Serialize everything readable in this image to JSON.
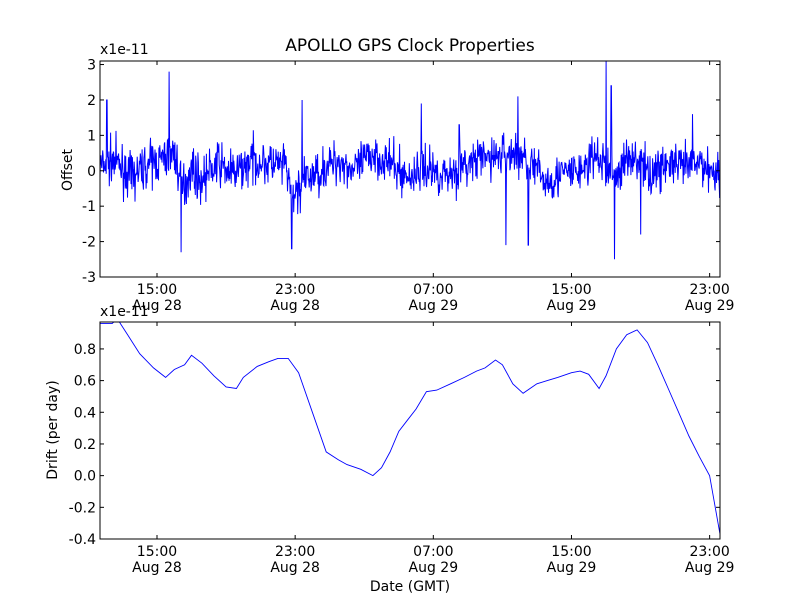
{
  "chart_data": [
    {
      "type": "line",
      "title": "APOLLO GPS Clock Properties",
      "ylabel": "Offset",
      "xlabel": "",
      "scale_label": "x1e-11",
      "ylim": [
        -3,
        3.1
      ],
      "yticks": [
        "-3",
        "-2",
        "-1",
        "0",
        "1",
        "2",
        "3"
      ],
      "yticks_values": [
        -3,
        -2,
        -1,
        0,
        1,
        2,
        3
      ],
      "xlim_hours": [
        11.7,
        47.6
      ],
      "xticks": [
        {
          "time": "15:00",
          "date": "Aug 28",
          "hour": 15
        },
        {
          "time": "23:00",
          "date": "Aug 28",
          "hour": 23
        },
        {
          "time": "07:00",
          "date": "Aug 29",
          "hour": 31
        },
        {
          "time": "15:00",
          "date": "Aug 29",
          "hour": 39
        },
        {
          "time": "23:00",
          "date": "Aug 29",
          "hour": 47
        }
      ],
      "color": "#0000ff",
      "series": [
        {
          "x": [
            11.7,
            12.5,
            13.5,
            14.5,
            15.3,
            16.0,
            16.5,
            17.0,
            17.5,
            18.5,
            19.5,
            20.5,
            21.5,
            22.5,
            22.8,
            23.5,
            24.5,
            25.5,
            26.5,
            27.5,
            28.5,
            29.5,
            30.5,
            31.5,
            32.5,
            33.5,
            34.5,
            35.5,
            36.5,
            37.5,
            38.5,
            39.5,
            40.5,
            41.5,
            42.5,
            43.5,
            44.5,
            45.5,
            46.5,
            47.6
          ],
          "y": [
            0.1,
            0.3,
            -0.2,
            0.2,
            0.3,
            0.5,
            -0.5,
            0.1,
            -0.3,
            0.2,
            -0.1,
            0.3,
            0.2,
            0.1,
            -0.8,
            -0.3,
            0.0,
            0.3,
            0.0,
            0.5,
            0.2,
            -0.2,
            0.1,
            -0.1,
            0.0,
            0.3,
            0.4,
            0.5,
            0.3,
            -0.3,
            -0.1,
            0.0,
            0.4,
            -0.2,
            0.5,
            -0.1,
            0.2,
            0.1,
            0.2,
            -0.1
          ],
          "spikes": [
            {
              "x": 12.1,
              "y": 2.0
            },
            {
              "x": 15.7,
              "y": 2.8
            },
            {
              "x": 16.4,
              "y": -2.3
            },
            {
              "x": 22.8,
              "y": -2.2
            },
            {
              "x": 23.4,
              "y": 2.0
            },
            {
              "x": 30.3,
              "y": 1.9
            },
            {
              "x": 32.5,
              "y": 1.3
            },
            {
              "x": 35.2,
              "y": -2.1
            },
            {
              "x": 35.9,
              "y": 2.1
            },
            {
              "x": 36.5,
              "y": -2.1
            },
            {
              "x": 41.0,
              "y": 3.1
            },
            {
              "x": 41.5,
              "y": -2.5
            },
            {
              "x": 41.3,
              "y": 2.4
            },
            {
              "x": 43.0,
              "y": -1.8
            },
            {
              "x": 46.0,
              "y": 1.6
            }
          ]
        }
      ]
    },
    {
      "type": "line",
      "title": "",
      "ylabel": "Drift (per day)",
      "xlabel": "Date (GMT)",
      "scale_label": "x1e-11",
      "ylim": [
        -0.4,
        0.97
      ],
      "yticks": [
        "-0.4",
        "-0.2",
        "0.0",
        "0.2",
        "0.4",
        "0.6",
        "0.8"
      ],
      "yticks_values": [
        -0.4,
        -0.2,
        0.0,
        0.2,
        0.4,
        0.6,
        0.8
      ],
      "xlim_hours": [
        11.7,
        47.6
      ],
      "xticks": [
        {
          "time": "15:00",
          "date": "Aug 28",
          "hour": 15
        },
        {
          "time": "23:00",
          "date": "Aug 28",
          "hour": 23
        },
        {
          "time": "07:00",
          "date": "Aug 29",
          "hour": 31
        },
        {
          "time": "15:00",
          "date": "Aug 29",
          "hour": 39
        },
        {
          "time": "23:00",
          "date": "Aug 29",
          "hour": 47
        }
      ],
      "color": "#0000ff",
      "series": [
        {
          "x": [
            11.7,
            12.4,
            12.7,
            13.3,
            14.0,
            14.8,
            15.5,
            16.0,
            16.6,
            17.0,
            17.6,
            18.3,
            19.0,
            19.6,
            20.0,
            20.8,
            21.5,
            22.0,
            22.6,
            23.2,
            24.0,
            24.8,
            25.5,
            26.0,
            26.8,
            27.5,
            28.0,
            28.5,
            29.0,
            29.5,
            30.0,
            30.6,
            31.2,
            32.0,
            32.8,
            33.5,
            34.0,
            34.6,
            35.0,
            35.6,
            36.2,
            37.0,
            37.6,
            38.2,
            39.0,
            39.5,
            40.0,
            40.6,
            41.0,
            41.6,
            42.2,
            42.8,
            43.4,
            44.0,
            44.6,
            45.2,
            45.8,
            46.4,
            47.0,
            47.6
          ],
          "y": [
            0.96,
            0.96,
            0.99,
            0.89,
            0.77,
            0.68,
            0.62,
            0.67,
            0.7,
            0.76,
            0.71,
            0.63,
            0.56,
            0.55,
            0.62,
            0.69,
            0.72,
            0.74,
            0.74,
            0.65,
            0.4,
            0.15,
            0.1,
            0.07,
            0.04,
            0.0,
            0.05,
            0.15,
            0.28,
            0.35,
            0.42,
            0.53,
            0.54,
            0.58,
            0.62,
            0.66,
            0.68,
            0.73,
            0.7,
            0.58,
            0.52,
            0.58,
            0.6,
            0.62,
            0.65,
            0.66,
            0.64,
            0.55,
            0.63,
            0.8,
            0.89,
            0.92,
            0.84,
            0.7,
            0.55,
            0.4,
            0.25,
            0.12,
            0.0,
            -0.37
          ]
        }
      ]
    }
  ]
}
